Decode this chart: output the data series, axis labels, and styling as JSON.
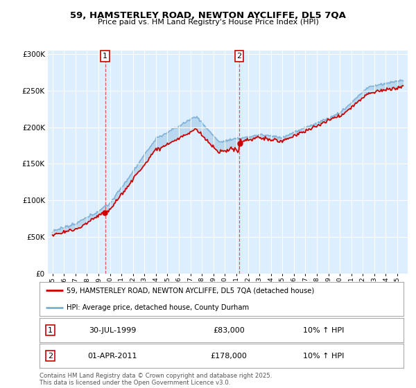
{
  "title": "59, HAMSTERLEY ROAD, NEWTON AYCLIFFE, DL5 7QA",
  "subtitle": "Price paid vs. HM Land Registry's House Price Index (HPI)",
  "ytick_values": [
    0,
    50000,
    100000,
    150000,
    200000,
    250000,
    300000
  ],
  "ylim": [
    0,
    305000
  ],
  "background_color": "#ffffff",
  "plot_bg_color": "#ddeeff",
  "grid_color": "#ffffff",
  "red_line_color": "#cc0000",
  "blue_line_color": "#7aadd4",
  "sale1_year": 1999.58,
  "sale1_price": 83000,
  "sale2_year": 2011.25,
  "sale2_price": 178000,
  "annotation1": {
    "label": "1",
    "date": "30-JUL-1999",
    "price": "£83,000",
    "hpi": "10% ↑ HPI"
  },
  "annotation2": {
    "label": "2",
    "date": "01-APR-2011",
    "price": "£178,000",
    "hpi": "10% ↑ HPI"
  },
  "legend_red": "59, HAMSTERLEY ROAD, NEWTON AYCLIFFE, DL5 7QA (detached house)",
  "legend_blue": "HPI: Average price, detached house, County Durham",
  "footer": "Contains HM Land Registry data © Crown copyright and database right 2025.\nThis data is licensed under the Open Government Licence v3.0.",
  "x_start_year": 1995,
  "x_end_year": 2025
}
